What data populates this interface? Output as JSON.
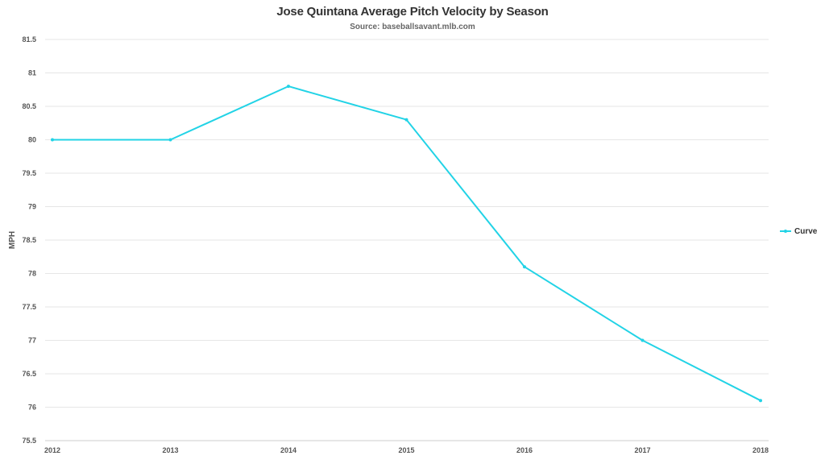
{
  "chart_data": {
    "type": "line",
    "title": "Jose Quintana Average Pitch Velocity by Season",
    "subtitle": "Source: baseballsavant.mlb.com",
    "xlabel": "",
    "ylabel": "MPH",
    "x": [
      "2012",
      "2013",
      "2014",
      "2015",
      "2016",
      "2017",
      "2018"
    ],
    "ylim": [
      75.5,
      81.5
    ],
    "yticks": [
      "75.5",
      "76",
      "76.5",
      "77",
      "77.5",
      "78",
      "78.5",
      "79",
      "79.5",
      "80",
      "80.5",
      "81",
      "81.5"
    ],
    "grid": true,
    "legend_position": "right",
    "series": [
      {
        "name": "Curve",
        "color": "#22d3e6",
        "values": [
          80.0,
          80.0,
          80.8,
          80.3,
          78.1,
          77.0,
          76.1
        ]
      }
    ]
  }
}
